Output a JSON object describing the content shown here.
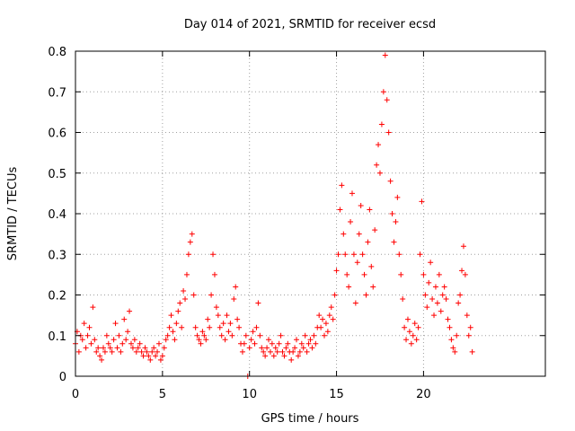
{
  "chart_data": {
    "type": "scatter",
    "title": "Day 014 of 2021, SRMTID for receiver ecsd",
    "xlabel": "GPS time / hours",
    "ylabel": "SRMTID / TECUs",
    "xlim": [
      0,
      27
    ],
    "ylim": [
      0,
      0.8
    ],
    "xticks": [
      0,
      5,
      10,
      15,
      20
    ],
    "yticks": [
      0,
      0.1,
      0.2,
      0.3,
      0.4,
      0.5,
      0.6,
      0.7,
      0.8
    ],
    "xtick_labels": [
      "0",
      "5",
      "10",
      "15",
      "20"
    ],
    "ytick_labels": [
      "0",
      "0.1",
      "0.2",
      "0.3",
      "0.4",
      "0.5",
      "0.6",
      "0.7",
      "0.8"
    ],
    "grid": true,
    "marker": "+",
    "color": "#ff0000",
    "series": [
      {
        "name": "SRMTID",
        "x": [
          0.0,
          0.1,
          0.2,
          0.3,
          0.4,
          0.5,
          0.6,
          0.7,
          0.8,
          0.9,
          1.0,
          1.1,
          1.2,
          1.3,
          1.4,
          1.5,
          1.6,
          1.7,
          1.8,
          1.9,
          2.0,
          2.1,
          2.2,
          2.3,
          2.4,
          2.5,
          2.6,
          2.7,
          2.8,
          2.9,
          3.0,
          3.1,
          3.2,
          3.3,
          3.4,
          3.5,
          3.6,
          3.7,
          3.8,
          3.9,
          4.0,
          4.1,
          4.2,
          4.3,
          4.4,
          4.5,
          4.6,
          4.7,
          4.8,
          4.9,
          5.0,
          5.1,
          5.2,
          5.3,
          5.4,
          5.5,
          5.6,
          5.7,
          5.8,
          5.9,
          6.0,
          6.1,
          6.2,
          6.3,
          6.4,
          6.5,
          6.6,
          6.7,
          6.8,
          6.9,
          7.0,
          7.1,
          7.2,
          7.3,
          7.4,
          7.5,
          7.6,
          7.7,
          7.8,
          7.9,
          8.0,
          8.1,
          8.2,
          8.3,
          8.4,
          8.5,
          8.6,
          8.7,
          8.8,
          8.9,
          9.0,
          9.1,
          9.2,
          9.3,
          9.4,
          9.5,
          9.6,
          9.7,
          9.8,
          9.9,
          10.0,
          10.1,
          10.2,
          10.3,
          10.4,
          10.5,
          10.6,
          10.7,
          10.8,
          10.9,
          11.0,
          11.1,
          11.2,
          11.3,
          11.4,
          11.5,
          11.6,
          11.7,
          11.8,
          11.9,
          12.0,
          12.1,
          12.2,
          12.3,
          12.4,
          12.5,
          12.6,
          12.7,
          12.8,
          12.9,
          13.0,
          13.1,
          13.2,
          13.3,
          13.4,
          13.5,
          13.6,
          13.7,
          13.8,
          13.9,
          14.0,
          14.1,
          14.2,
          14.3,
          14.4,
          14.5,
          14.6,
          14.7,
          14.8,
          14.9,
          15.0,
          15.1,
          15.2,
          15.3,
          15.4,
          15.5,
          15.6,
          15.7,
          15.8,
          15.9,
          16.0,
          16.1,
          16.2,
          16.3,
          16.4,
          16.5,
          16.6,
          16.7,
          16.8,
          16.9,
          17.0,
          17.1,
          17.2,
          17.3,
          17.4,
          17.5,
          17.6,
          17.7,
          17.8,
          17.9,
          18.0,
          18.1,
          18.2,
          18.3,
          18.4,
          18.5,
          18.6,
          18.7,
          18.8,
          18.9,
          19.0,
          19.1,
          19.2,
          19.3,
          19.4,
          19.5,
          19.6,
          19.7,
          19.8,
          19.9,
          20.0,
          20.1,
          20.2,
          20.3,
          20.4,
          20.5,
          20.6,
          20.7,
          20.8,
          20.9,
          21.0,
          21.1,
          21.2,
          21.3,
          21.4,
          21.5,
          21.6,
          21.7,
          21.8,
          21.9,
          22.0,
          22.1,
          22.2,
          22.3,
          22.4,
          22.5,
          22.6,
          22.7,
          22.8
        ],
        "y": [
          0.08,
          0.11,
          0.06,
          0.1,
          0.09,
          0.13,
          0.07,
          0.1,
          0.12,
          0.08,
          0.17,
          0.09,
          0.06,
          0.07,
          0.05,
          0.04,
          0.07,
          0.06,
          0.1,
          0.08,
          0.07,
          0.06,
          0.09,
          0.13,
          0.07,
          0.1,
          0.06,
          0.08,
          0.14,
          0.09,
          0.11,
          0.16,
          0.08,
          0.07,
          0.09,
          0.06,
          0.07,
          0.08,
          0.06,
          0.05,
          0.07,
          0.06,
          0.05,
          0.04,
          0.06,
          0.07,
          0.05,
          0.06,
          0.08,
          0.04,
          0.05,
          0.07,
          0.09,
          0.1,
          0.12,
          0.15,
          0.11,
          0.09,
          0.13,
          0.16,
          0.18,
          0.12,
          0.21,
          0.19,
          0.25,
          0.3,
          0.33,
          0.35,
          0.2,
          0.12,
          0.1,
          0.09,
          0.08,
          0.11,
          0.1,
          0.09,
          0.14,
          0.12,
          0.2,
          0.3,
          0.25,
          0.17,
          0.15,
          0.12,
          0.1,
          0.13,
          0.09,
          0.15,
          0.11,
          0.13,
          0.1,
          0.19,
          0.22,
          0.14,
          0.12,
          0.08,
          0.06,
          0.08,
          0.1,
          0.0,
          0.07,
          0.09,
          0.11,
          0.08,
          0.12,
          0.18,
          0.1,
          0.07,
          0.06,
          0.05,
          0.07,
          0.09,
          0.06,
          0.08,
          0.05,
          0.07,
          0.06,
          0.08,
          0.1,
          0.06,
          0.05,
          0.07,
          0.08,
          0.06,
          0.04,
          0.06,
          0.07,
          0.09,
          0.05,
          0.06,
          0.08,
          0.07,
          0.1,
          0.06,
          0.08,
          0.09,
          0.07,
          0.1,
          0.08,
          0.12,
          0.15,
          0.12,
          0.14,
          0.1,
          0.13,
          0.11,
          0.15,
          0.17,
          0.14,
          0.2,
          0.26,
          0.3,
          0.41,
          0.47,
          0.35,
          0.3,
          0.25,
          0.22,
          0.38,
          0.45,
          0.3,
          0.18,
          0.28,
          0.35,
          0.42,
          0.3,
          0.25,
          0.2,
          0.33,
          0.41,
          0.27,
          0.22,
          0.36,
          0.52,
          0.57,
          0.5,
          0.62,
          0.7,
          0.79,
          0.68,
          0.6,
          0.48,
          0.4,
          0.33,
          0.38,
          0.44,
          0.3,
          0.25,
          0.19,
          0.12,
          0.09,
          0.14,
          0.11,
          0.08,
          0.1,
          0.13,
          0.09,
          0.12,
          0.3,
          0.43,
          0.25,
          0.2,
          0.17,
          0.23,
          0.28,
          0.19,
          0.15,
          0.22,
          0.18,
          0.25,
          0.16,
          0.2,
          0.22,
          0.19,
          0.14,
          0.12,
          0.09,
          0.07,
          0.06,
          0.1,
          0.18,
          0.2,
          0.26,
          0.32,
          0.25,
          0.15,
          0.1,
          0.12,
          0.06
        ]
      }
    ]
  }
}
